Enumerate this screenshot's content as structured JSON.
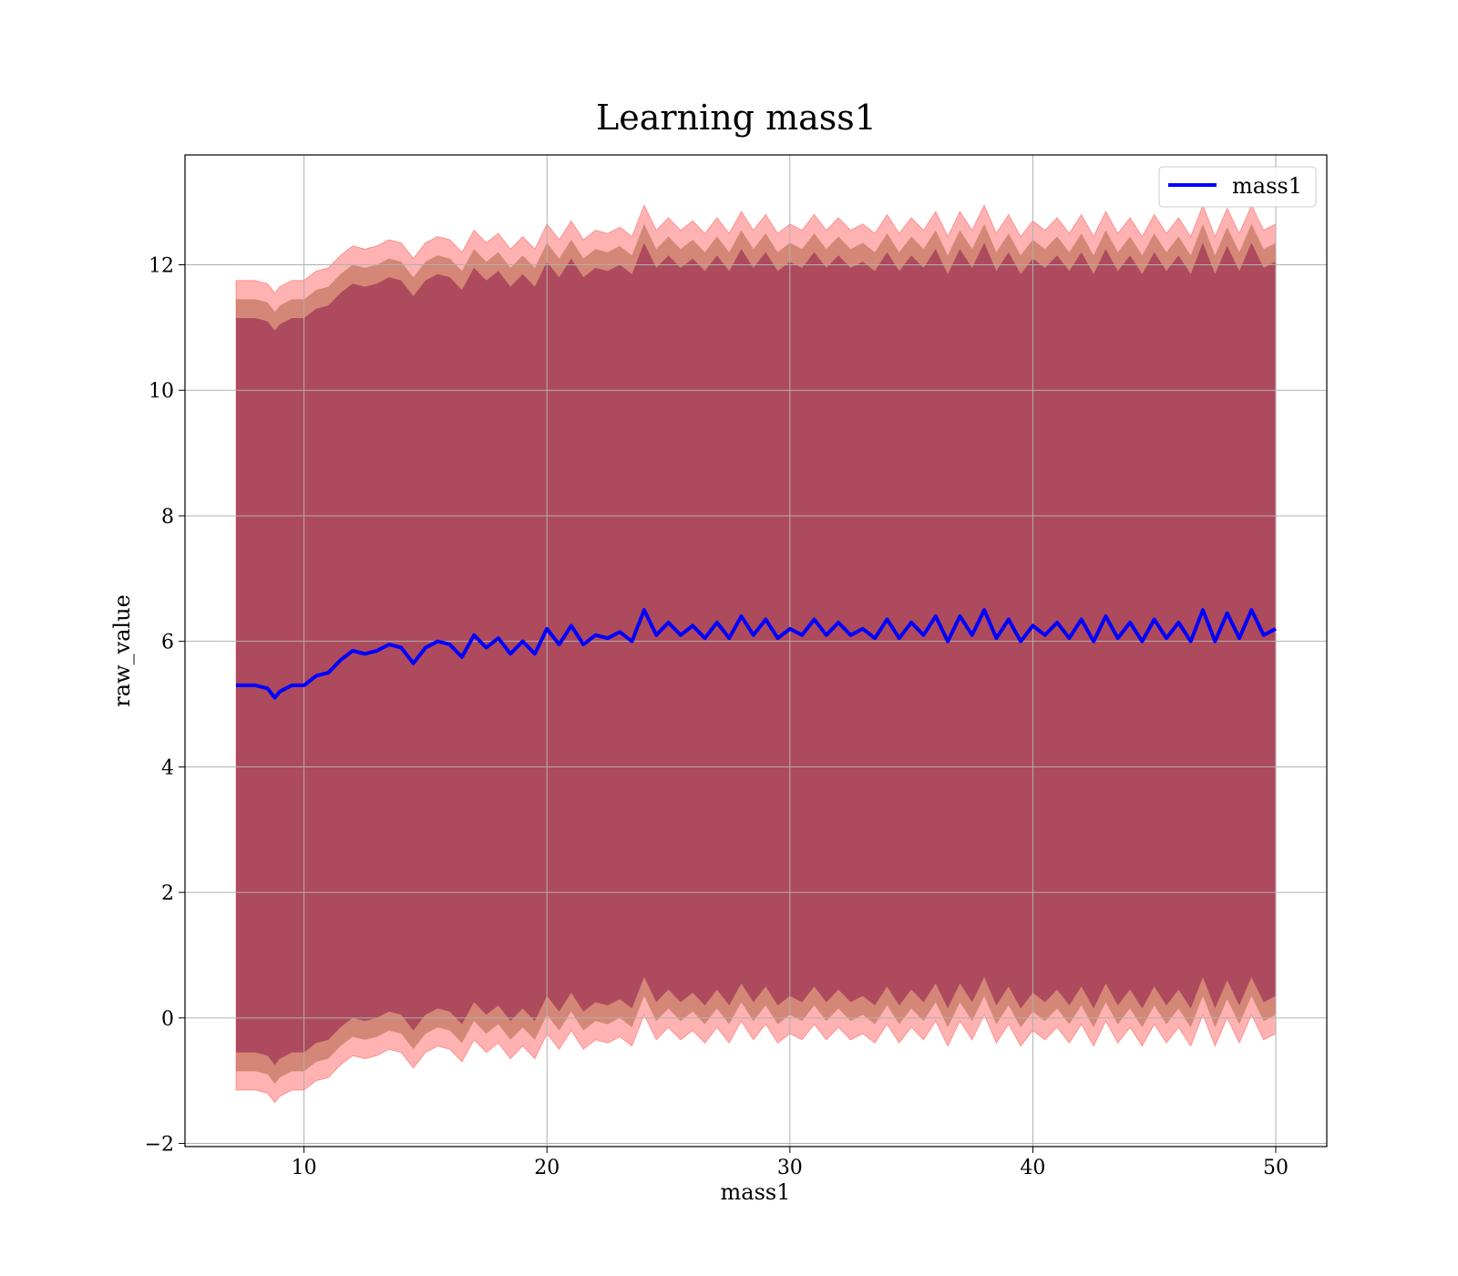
{
  "chart_data": {
    "type": "line",
    "title": "Learning mass1",
    "xlabel": "mass1",
    "ylabel": "raw_value",
    "xlim": [
      5.1,
      52.1
    ],
    "ylim": [
      -2.05,
      13.75
    ],
    "x_ticks": [
      10,
      20,
      30,
      40,
      50
    ],
    "y_ticks": [
      -2,
      0,
      2,
      4,
      6,
      8,
      10,
      12
    ],
    "x_tick_labels": [
      "10",
      "20",
      "30",
      "40",
      "50"
    ],
    "y_tick_labels": [
      "−2",
      "0",
      "2",
      "4",
      "6",
      "8",
      "10",
      "12"
    ],
    "grid": true,
    "legend": {
      "position": "top-right",
      "entries": [
        "mass1"
      ]
    },
    "series": [
      {
        "name": "mass1",
        "color": "#0000ff",
        "x": [
          7.2,
          8.0,
          8.5,
          8.8,
          9.0,
          9.5,
          10.0,
          10.5,
          11.0,
          11.5,
          12.0,
          12.5,
          13.0,
          13.5,
          14.0,
          14.5,
          15.0,
          15.5,
          16.0,
          16.5,
          17.0,
          17.5,
          18.0,
          18.5,
          19.0,
          19.5,
          20.0,
          20.5,
          21.0,
          21.5,
          22.0,
          22.5,
          23.0,
          23.5,
          24.0,
          24.5,
          25.0,
          25.5,
          26.0,
          26.5,
          27.0,
          27.5,
          28.0,
          28.5,
          29.0,
          29.5,
          30.0,
          30.5,
          31.0,
          31.5,
          32.0,
          32.5,
          33.0,
          33.5,
          34.0,
          34.5,
          35.0,
          35.5,
          36.0,
          36.5,
          37.0,
          37.5,
          38.0,
          38.5,
          39.0,
          39.5,
          40.0,
          40.5,
          41.0,
          41.5,
          42.0,
          42.5,
          43.0,
          43.5,
          44.0,
          44.5,
          45.0,
          45.5,
          46.0,
          46.5,
          47.0,
          47.5,
          48.0,
          48.5,
          49.0,
          49.5,
          50.0
        ],
        "y": [
          5.3,
          5.3,
          5.25,
          5.1,
          5.2,
          5.3,
          5.3,
          5.45,
          5.5,
          5.7,
          5.85,
          5.8,
          5.85,
          5.95,
          5.9,
          5.65,
          5.9,
          6.0,
          5.95,
          5.75,
          6.1,
          5.9,
          6.05,
          5.8,
          6.0,
          5.8,
          6.2,
          5.95,
          6.25,
          5.95,
          6.1,
          6.05,
          6.15,
          6.0,
          6.5,
          6.1,
          6.3,
          6.1,
          6.25,
          6.05,
          6.3,
          6.05,
          6.4,
          6.1,
          6.35,
          6.05,
          6.2,
          6.1,
          6.35,
          6.1,
          6.3,
          6.1,
          6.2,
          6.05,
          6.35,
          6.05,
          6.3,
          6.1,
          6.4,
          6.0,
          6.4,
          6.1,
          6.5,
          6.05,
          6.35,
          6.0,
          6.25,
          6.1,
          6.3,
          6.05,
          6.35,
          6.0,
          6.4,
          6.05,
          6.3,
          6.0,
          6.35,
          6.05,
          6.3,
          6.0,
          6.5,
          6.0,
          6.45,
          6.05,
          6.5,
          6.1,
          6.2
        ],
        "band_inner_half_width": 5.85,
        "band_mid_half_width": 6.15,
        "band_outer_half_width": 6.45,
        "band_outer_color": "#ff0000",
        "band_mid_color": "#a0522d",
        "band_inner_color": "#800040"
      }
    ]
  }
}
